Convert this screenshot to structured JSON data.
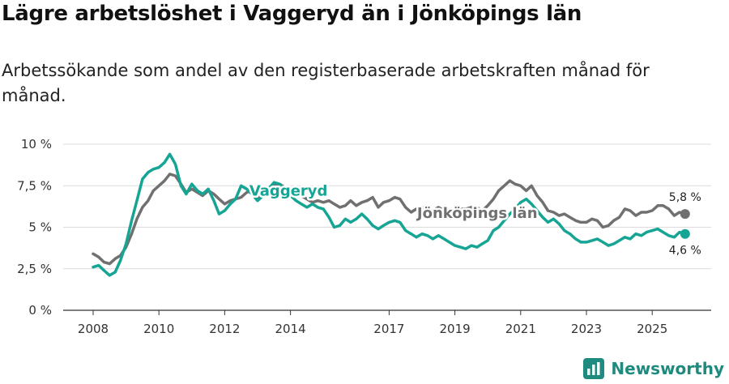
{
  "title": "Lägre arbetslöshet i Vaggeryd än i Jönköpings län",
  "subtitle": "Arbetssökande som andel av den registerbaserade arbetskraften månad för månad.",
  "brand": {
    "name": "Newsworthy",
    "color": "#1f8a7e"
  },
  "chart_data": {
    "type": "line",
    "title": "Lägre arbetslöshet i Vaggeryd än i Jönköpings län",
    "xlabel": "",
    "ylabel": "",
    "xlim": [
      2008,
      2026.3
    ],
    "ylim": [
      0,
      10
    ],
    "y_ticks": [
      0,
      2.5,
      5,
      7.5,
      10
    ],
    "y_tick_labels": [
      "0 %",
      "2,5 %",
      "5 %",
      "7,5 %",
      "10 %"
    ],
    "x_ticks": [
      2008,
      2010,
      2012,
      2014,
      2017,
      2019,
      2021,
      2023,
      2025
    ],
    "x_tick_labels": [
      "2008",
      "2010",
      "2012",
      "2014",
      "2017",
      "2019",
      "2021",
      "2023",
      "2025"
    ],
    "grid": true,
    "series": [
      {
        "name": "Jönköpings län",
        "label": "Jönköpings län",
        "color": "#707070",
        "end_label": "5,8 %",
        "points": [
          [
            2008.0,
            3.4
          ],
          [
            2008.17,
            3.2
          ],
          [
            2008.33,
            2.9
          ],
          [
            2008.5,
            2.8
          ],
          [
            2008.67,
            3.1
          ],
          [
            2008.83,
            3.3
          ],
          [
            2009.0,
            3.8
          ],
          [
            2009.17,
            4.6
          ],
          [
            2009.33,
            5.5
          ],
          [
            2009.5,
            6.2
          ],
          [
            2009.67,
            6.6
          ],
          [
            2009.83,
            7.2
          ],
          [
            2010.0,
            7.5
          ],
          [
            2010.17,
            7.8
          ],
          [
            2010.33,
            8.2
          ],
          [
            2010.5,
            8.1
          ],
          [
            2010.67,
            7.6
          ],
          [
            2010.83,
            7.1
          ],
          [
            2011.0,
            7.3
          ],
          [
            2011.17,
            7.1
          ],
          [
            2011.33,
            6.9
          ],
          [
            2011.5,
            7.2
          ],
          [
            2011.67,
            7.0
          ],
          [
            2011.83,
            6.7
          ],
          [
            2012.0,
            6.4
          ],
          [
            2012.17,
            6.6
          ],
          [
            2012.33,
            6.7
          ],
          [
            2012.5,
            6.8
          ],
          [
            2012.67,
            7.1
          ],
          [
            2012.83,
            7.2
          ],
          [
            2013.0,
            6.7
          ],
          [
            2013.17,
            7.0
          ],
          [
            2013.33,
            7.3
          ],
          [
            2013.5,
            7.5
          ],
          [
            2013.67,
            7.6
          ],
          [
            2013.83,
            7.4
          ],
          [
            2014.0,
            7.2
          ],
          [
            2014.17,
            7.0
          ],
          [
            2014.33,
            6.9
          ],
          [
            2014.5,
            6.7
          ],
          [
            2014.67,
            6.5
          ],
          [
            2014.83,
            6.6
          ],
          [
            2015.0,
            6.5
          ],
          [
            2015.17,
            6.6
          ],
          [
            2015.33,
            6.4
          ],
          [
            2015.5,
            6.2
          ],
          [
            2015.67,
            6.3
          ],
          [
            2015.83,
            6.6
          ],
          [
            2016.0,
            6.3
          ],
          [
            2016.17,
            6.5
          ],
          [
            2016.33,
            6.6
          ],
          [
            2016.5,
            6.8
          ],
          [
            2016.67,
            6.2
          ],
          [
            2016.83,
            6.5
          ],
          [
            2017.0,
            6.6
          ],
          [
            2017.17,
            6.8
          ],
          [
            2017.33,
            6.7
          ],
          [
            2017.5,
            6.2
          ],
          [
            2017.67,
            5.9
          ],
          [
            2017.83,
            6.1
          ],
          [
            2018.0,
            6.2
          ],
          [
            2018.17,
            6.1
          ],
          [
            2018.33,
            6.0
          ],
          [
            2018.5,
            6.2
          ],
          [
            2018.67,
            6.0
          ],
          [
            2018.83,
            5.8
          ],
          [
            2019.0,
            6.0
          ],
          [
            2019.17,
            6.1
          ],
          [
            2019.33,
            6.1
          ],
          [
            2019.5,
            6.2
          ],
          [
            2019.67,
            6.2
          ],
          [
            2019.83,
            6.0
          ],
          [
            2020.0,
            6.3
          ],
          [
            2020.17,
            6.7
          ],
          [
            2020.33,
            7.2
          ],
          [
            2020.5,
            7.5
          ],
          [
            2020.67,
            7.8
          ],
          [
            2020.83,
            7.6
          ],
          [
            2021.0,
            7.5
          ],
          [
            2021.17,
            7.2
          ],
          [
            2021.33,
            7.5
          ],
          [
            2021.5,
            6.9
          ],
          [
            2021.67,
            6.5
          ],
          [
            2021.83,
            6.0
          ],
          [
            2022.0,
            5.9
          ],
          [
            2022.17,
            5.7
          ],
          [
            2022.33,
            5.8
          ],
          [
            2022.5,
            5.6
          ],
          [
            2022.67,
            5.4
          ],
          [
            2022.83,
            5.3
          ],
          [
            2023.0,
            5.3
          ],
          [
            2023.17,
            5.5
          ],
          [
            2023.33,
            5.4
          ],
          [
            2023.5,
            5.0
          ],
          [
            2023.67,
            5.1
          ],
          [
            2023.83,
            5.4
          ],
          [
            2024.0,
            5.6
          ],
          [
            2024.17,
            6.1
          ],
          [
            2024.33,
            6.0
          ],
          [
            2024.5,
            5.7
          ],
          [
            2024.67,
            5.9
          ],
          [
            2024.83,
            5.9
          ],
          [
            2025.0,
            6.0
          ],
          [
            2025.17,
            6.3
          ],
          [
            2025.33,
            6.3
          ],
          [
            2025.5,
            6.1
          ],
          [
            2025.67,
            5.7
          ],
          [
            2025.83,
            5.9
          ],
          [
            2026.0,
            5.8
          ]
        ]
      },
      {
        "name": "Vaggeryd",
        "label": "Vaggeryd",
        "color": "#16a594",
        "end_label": "4,6 %",
        "points": [
          [
            2008.0,
            2.6
          ],
          [
            2008.17,
            2.7
          ],
          [
            2008.33,
            2.4
          ],
          [
            2008.5,
            2.1
          ],
          [
            2008.67,
            2.3
          ],
          [
            2008.83,
            3.0
          ],
          [
            2009.0,
            4.0
          ],
          [
            2009.17,
            5.4
          ],
          [
            2009.33,
            6.6
          ],
          [
            2009.5,
            7.9
          ],
          [
            2009.67,
            8.3
          ],
          [
            2009.83,
            8.5
          ],
          [
            2010.0,
            8.6
          ],
          [
            2010.17,
            8.9
          ],
          [
            2010.33,
            9.4
          ],
          [
            2010.5,
            8.8
          ],
          [
            2010.67,
            7.5
          ],
          [
            2010.83,
            7.0
          ],
          [
            2011.0,
            7.6
          ],
          [
            2011.17,
            7.2
          ],
          [
            2011.33,
            7.0
          ],
          [
            2011.5,
            7.3
          ],
          [
            2011.67,
            6.6
          ],
          [
            2011.83,
            5.8
          ],
          [
            2012.0,
            6.0
          ],
          [
            2012.17,
            6.4
          ],
          [
            2012.33,
            6.7
          ],
          [
            2012.5,
            7.5
          ],
          [
            2012.67,
            7.3
          ],
          [
            2012.83,
            7.0
          ],
          [
            2013.0,
            6.6
          ],
          [
            2013.17,
            6.9
          ],
          [
            2013.33,
            7.3
          ],
          [
            2013.5,
            7.7
          ],
          [
            2013.67,
            7.6
          ],
          [
            2013.83,
            7.2
          ],
          [
            2014.0,
            6.9
          ],
          [
            2014.17,
            6.6
          ],
          [
            2014.33,
            6.4
          ],
          [
            2014.5,
            6.2
          ],
          [
            2014.67,
            6.4
          ],
          [
            2014.83,
            6.2
          ],
          [
            2015.0,
            6.1
          ],
          [
            2015.17,
            5.6
          ],
          [
            2015.33,
            5.0
          ],
          [
            2015.5,
            5.1
          ],
          [
            2015.67,
            5.5
          ],
          [
            2015.83,
            5.3
          ],
          [
            2016.0,
            5.5
          ],
          [
            2016.17,
            5.8
          ],
          [
            2016.33,
            5.5
          ],
          [
            2016.5,
            5.1
          ],
          [
            2016.67,
            4.9
          ],
          [
            2016.83,
            5.1
          ],
          [
            2017.0,
            5.3
          ],
          [
            2017.17,
            5.4
          ],
          [
            2017.33,
            5.3
          ],
          [
            2017.5,
            4.8
          ],
          [
            2017.67,
            4.6
          ],
          [
            2017.83,
            4.4
          ],
          [
            2018.0,
            4.6
          ],
          [
            2018.17,
            4.5
          ],
          [
            2018.33,
            4.3
          ],
          [
            2018.5,
            4.5
          ],
          [
            2018.67,
            4.3
          ],
          [
            2018.83,
            4.1
          ],
          [
            2019.0,
            3.9
          ],
          [
            2019.17,
            3.8
          ],
          [
            2019.33,
            3.7
          ],
          [
            2019.5,
            3.9
          ],
          [
            2019.67,
            3.8
          ],
          [
            2019.83,
            4.0
          ],
          [
            2020.0,
            4.2
          ],
          [
            2020.17,
            4.8
          ],
          [
            2020.33,
            5.0
          ],
          [
            2020.5,
            5.4
          ],
          [
            2020.67,
            5.8
          ],
          [
            2020.83,
            6.1
          ],
          [
            2021.0,
            6.5
          ],
          [
            2021.17,
            6.7
          ],
          [
            2021.33,
            6.4
          ],
          [
            2021.5,
            6.0
          ],
          [
            2021.67,
            5.6
          ],
          [
            2021.83,
            5.3
          ],
          [
            2022.0,
            5.5
          ],
          [
            2022.17,
            5.2
          ],
          [
            2022.33,
            4.8
          ],
          [
            2022.5,
            4.6
          ],
          [
            2022.67,
            4.3
          ],
          [
            2022.83,
            4.1
          ],
          [
            2023.0,
            4.1
          ],
          [
            2023.17,
            4.2
          ],
          [
            2023.33,
            4.3
          ],
          [
            2023.5,
            4.1
          ],
          [
            2023.67,
            3.9
          ],
          [
            2023.83,
            4.0
          ],
          [
            2024.0,
            4.2
          ],
          [
            2024.17,
            4.4
          ],
          [
            2024.33,
            4.3
          ],
          [
            2024.5,
            4.6
          ],
          [
            2024.67,
            4.5
          ],
          [
            2024.83,
            4.7
          ],
          [
            2025.0,
            4.8
          ],
          [
            2025.17,
            4.9
          ],
          [
            2025.33,
            4.7
          ],
          [
            2025.5,
            4.5
          ],
          [
            2025.67,
            4.4
          ],
          [
            2025.83,
            4.7
          ],
          [
            2026.0,
            4.6
          ]
        ]
      }
    ]
  }
}
